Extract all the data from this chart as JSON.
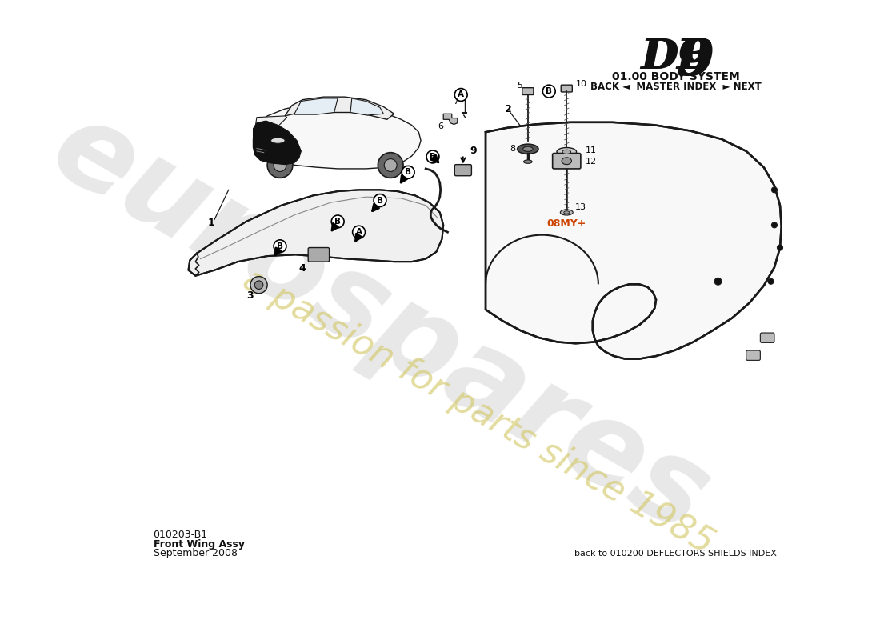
{
  "title_system": "01.00 BODY SYSTEM",
  "nav_text": "BACK ◄  MASTER INDEX  ► NEXT",
  "part_number": "010203-B1",
  "part_name": "Front Wing Assy",
  "part_date": "September 2008",
  "bottom_ref": "back to 010200 DEFLECTORS SHIELDS INDEX",
  "watermark_main": "eurospares",
  "watermark_sub": "a passion for parts since 1985",
  "bg_color": "#ffffff",
  "line_color": "#1a1a1a",
  "orange_label": "#cc4400"
}
